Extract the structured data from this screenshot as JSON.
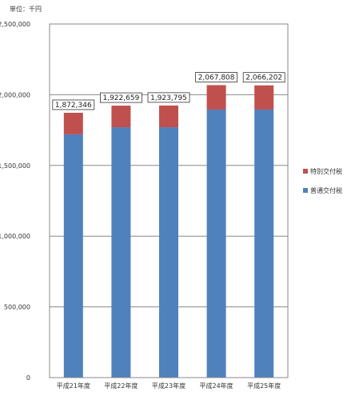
{
  "chart_data": {
    "type": "bar",
    "stacked": true,
    "unit_label": "単位：千円",
    "categories": [
      "平成21年度",
      "平成22年度",
      "平成23年度",
      "平成24年度",
      "平成25年度"
    ],
    "series": [
      {
        "name": "普通交付税",
        "color": "#4f81bd",
        "values": [
          1720000,
          1770000,
          1770000,
          1895000,
          1895000
        ]
      },
      {
        "name": "特別交付税",
        "color": "#c0504d",
        "values": [
          152346,
          152659,
          153795,
          172808,
          171202
        ]
      }
    ],
    "totals": [
      "1,872,346",
      "1,922,659",
      "1,923,795",
      "2,067,808",
      "2,066,202"
    ],
    "y_ticks": [
      "0",
      "500,000",
      "1,000,000",
      "1,500,000",
      "2,000,000",
      "2,500,000"
    ],
    "ylim": [
      0,
      2500000
    ],
    "grid": true,
    "legend_position": "right"
  }
}
